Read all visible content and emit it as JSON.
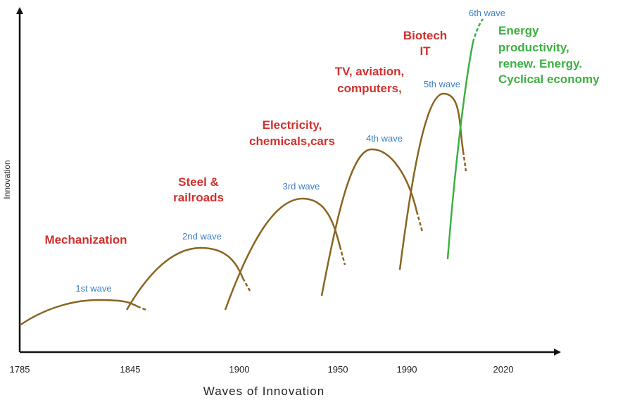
{
  "axes": {
    "y_label": "Innovation",
    "x_label": "Waves of Innovation",
    "x_ticks": [
      "1785",
      "1845",
      "1900",
      "1950",
      "1990",
      "2020"
    ]
  },
  "waves": [
    {
      "label": "1st wave",
      "tech": [
        "Mechanization"
      ]
    },
    {
      "label": "2nd wave",
      "tech": [
        "Steel &",
        "railroads"
      ]
    },
    {
      "label": "3rd wave",
      "tech": [
        "Electricity,",
        "chemicals,cars"
      ]
    },
    {
      "label": "4th wave",
      "tech": [
        "TV, aviation,",
        "computers,"
      ]
    },
    {
      "label": "5th wave",
      "tech": [
        "Biotech",
        "IT"
      ]
    },
    {
      "label": "6th wave",
      "tech": [
        "Energy",
        "productivity,",
        "renew. Energy.",
        "Cyclical economy"
      ]
    }
  ]
}
